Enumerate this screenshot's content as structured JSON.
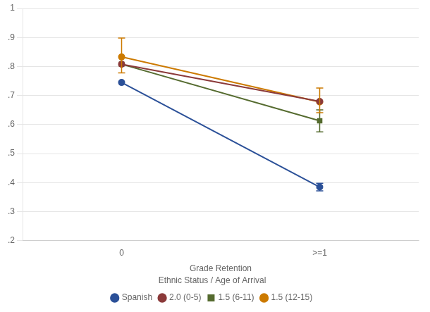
{
  "chart_data": {
    "type": "line",
    "xlabel": "Grade Retention",
    "categories": [
      "0",
      ">=1"
    ],
    "ylim": [
      0.2,
      1.0
    ],
    "yticks": [
      {
        "value": 0.2,
        "label": ".2"
      },
      {
        "value": 0.3,
        "label": ".3"
      },
      {
        "value": 0.4,
        "label": ".4"
      },
      {
        "value": 0.5,
        "label": ".5"
      },
      {
        "value": 0.6,
        "label": ".6"
      },
      {
        "value": 0.7,
        "label": ".7"
      },
      {
        "value": 0.8,
        "label": ".8"
      },
      {
        "value": 0.9,
        "label": ".9"
      },
      1
    ],
    "grid": "y",
    "legend": "bottom",
    "legend_title": "Ethnic Status / Age of Arrival",
    "series": [
      {
        "name": "Spanish",
        "color": "#2B5098",
        "marker": "circle",
        "values": [
          0.745,
          0.385
        ],
        "error_low": [
          0.0,
          0.013
        ],
        "error_high": [
          0.0,
          0.013
        ]
      },
      {
        "name": "2.0 (0-5)",
        "color": "#8B3A3A",
        "marker": "circle",
        "values": [
          0.808,
          0.68
        ],
        "error_low": [
          0.0,
          0.0
        ],
        "error_high": [
          0.0,
          0.0
        ]
      },
      {
        "name": "1.5 (6-11)",
        "color": "#556B2F",
        "marker": "square",
        "values": [
          0.808,
          0.613
        ],
        "error_low": [
          0.0,
          0.038
        ],
        "error_high": [
          0.0,
          0.038
        ]
      },
      {
        "name": "1.5 (12-15)",
        "color": "#CC7A00",
        "marker": "circle",
        "values": [
          0.833,
          0.678
        ],
        "error_low": [
          0.055,
          0.037
        ],
        "error_high": [
          0.065,
          0.048
        ]
      }
    ]
  }
}
